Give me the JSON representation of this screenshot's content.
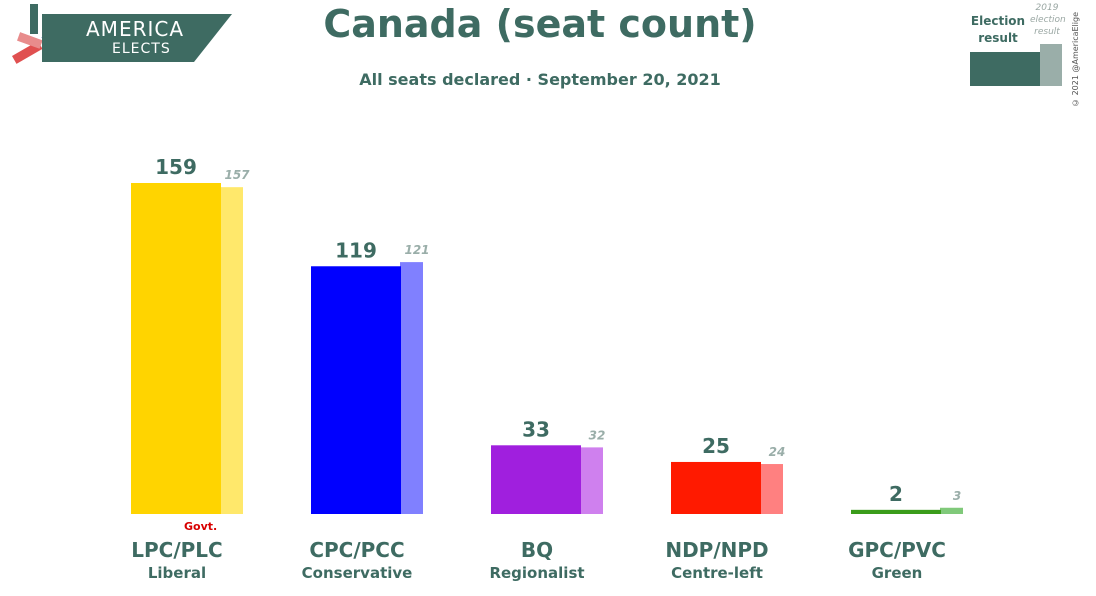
{
  "logo": {
    "line1": "AMERICA",
    "line2": "ELECTS"
  },
  "title": "Canada (seat count)",
  "subtitle": "All seats declared · September 20, 2021",
  "legend": {
    "current_label": "Election result",
    "previous_label": "2019 election result"
  },
  "copyright": "© 2021 @AmericaElige",
  "govt_label": "Govt.",
  "parties": [
    {
      "name": "LPC/PLC",
      "desc": "Liberal"
    },
    {
      "name": "CPC/PCC",
      "desc": "Conservative"
    },
    {
      "name": "BQ",
      "desc": "Regionalist"
    },
    {
      "name": "NDP/NPD",
      "desc": "Centre-left"
    },
    {
      "name": "GPC/PVC",
      "desc": "Green"
    }
  ],
  "chart_data": {
    "type": "bar",
    "title": "Canada (seat count)",
    "subtitle": "All seats declared · September 20, 2021",
    "categories": [
      "LPC/PLC",
      "CPC/PCC",
      "BQ",
      "NDP/NPD",
      "GPC/PVC"
    ],
    "series": [
      {
        "name": "Election result",
        "values": [
          159,
          119,
          33,
          25,
          2
        ],
        "colors": [
          "#ffd400",
          "#0000ff",
          "#a01fde",
          "#ff1a00",
          "#3a9c1a"
        ]
      },
      {
        "name": "2019 election result",
        "values": [
          157,
          121,
          32,
          24,
          3
        ],
        "colors": [
          "#ffe86b",
          "#8080ff",
          "#cf80ee",
          "#ff8080",
          "#80c97a"
        ]
      }
    ],
    "ylim": [
      0,
      159
    ],
    "grid": false,
    "legend": "top-right"
  }
}
